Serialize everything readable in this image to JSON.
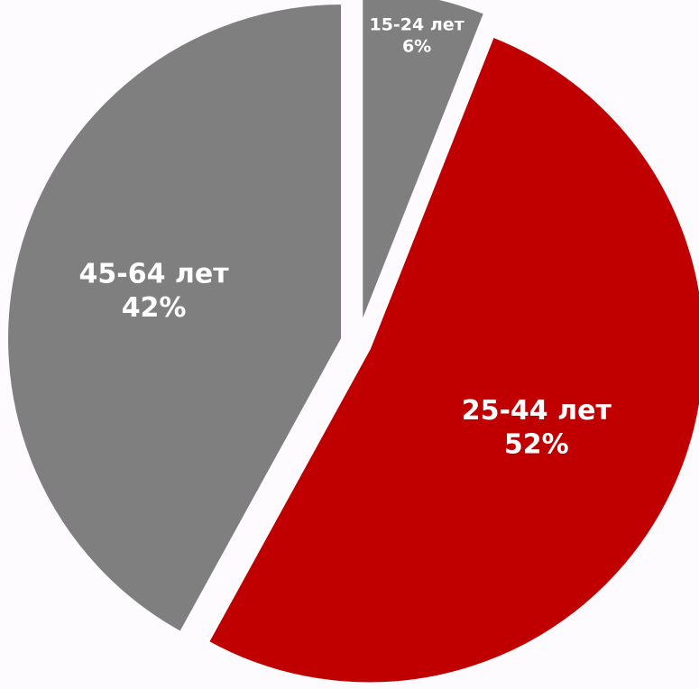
{
  "chart_data": {
    "type": "pie",
    "slices": [
      {
        "label": "15-24 лет",
        "value": 6,
        "value_text": "6%",
        "color": "#7f7f7f"
      },
      {
        "label": "25-44 лет",
        "value": 52,
        "value_text": "52%",
        "color": "#c00000"
      },
      {
        "label": "45-64 лет",
        "value": 42,
        "value_text": "42%",
        "color": "#7f7f7f"
      }
    ],
    "start_angle": "12 o'clock",
    "direction": "clockwise",
    "exploded": true,
    "legend": "none",
    "title": ""
  }
}
